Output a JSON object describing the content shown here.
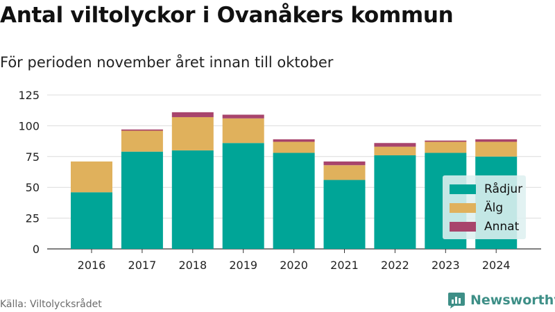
{
  "title": "Antal viltolyckor i Ovanåkers kommun",
  "subtitle": "För perioden november året innan till oktober",
  "source": "Källa: Viltolycksrådet",
  "brand": "Newsworthy",
  "colors": {
    "radjur": "#00a597",
    "alg": "#e0b15c",
    "annat": "#a8446c",
    "grid": "#dcdcdc",
    "axis": "#333333",
    "brand": "#3e8f87"
  },
  "chart_data": {
    "type": "bar",
    "stacked": true,
    "categories": [
      "2016",
      "2017",
      "2018",
      "2019",
      "2020",
      "2021",
      "2022",
      "2023",
      "2024"
    ],
    "series": [
      {
        "name": "Rådjur",
        "color": "#00a597",
        "values": [
          46,
          79,
          80,
          86,
          78,
          56,
          76,
          78,
          75
        ]
      },
      {
        "name": "Älg",
        "color": "#e0b15c",
        "values": [
          25,
          17,
          27,
          20,
          9,
          12,
          7,
          9,
          12
        ]
      },
      {
        "name": "Annat",
        "color": "#a8446c",
        "values": [
          0,
          1,
          4,
          3,
          2,
          3,
          3,
          1,
          2
        ]
      }
    ],
    "ylim": [
      0,
      125
    ],
    "yticks": [
      0,
      25,
      50,
      75,
      100,
      125
    ],
    "grid": true,
    "legend_position": "right"
  }
}
